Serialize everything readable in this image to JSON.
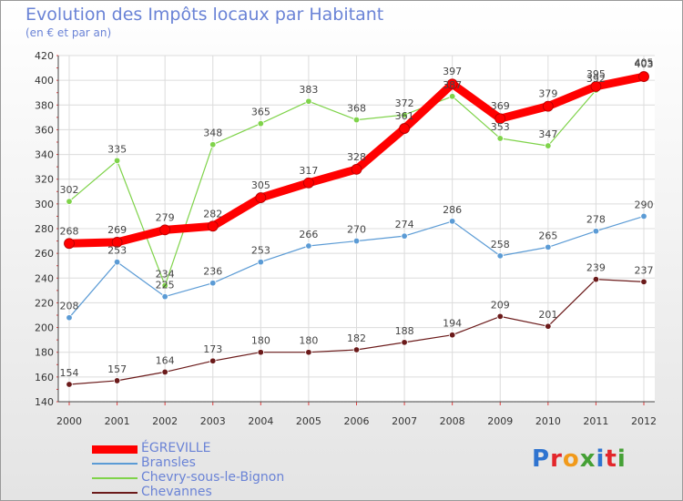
{
  "title": "Evolution des Impôts locaux par Habitant",
  "subtitle": "(en € et par an)",
  "logo": {
    "text": "Proxiti",
    "letter_colors": [
      "#2f74d0",
      "#e3262b",
      "#f19a1b",
      "#45a035",
      "#2f74d0",
      "#e3262b",
      "#45a035"
    ]
  },
  "chart_data": {
    "type": "line",
    "x": [
      2000,
      2001,
      2002,
      2003,
      2004,
      2005,
      2006,
      2007,
      2008,
      2009,
      2010,
      2011,
      2012
    ],
    "ylim": [
      140,
      420
    ],
    "yticks": [
      140,
      160,
      180,
      200,
      220,
      240,
      260,
      280,
      300,
      320,
      340,
      360,
      380,
      400,
      420
    ],
    "grid": true,
    "legend_position": "bottom-left",
    "series": [
      {
        "name": "ÉGREVILLE",
        "color": "#ff0000",
        "values": [
          268,
          269,
          279,
          282,
          305,
          317,
          328,
          361,
          397,
          369,
          379,
          395,
          403
        ]
      },
      {
        "name": "Bransles",
        "color": "#5b9bd5",
        "values": [
          208,
          253,
          225,
          236,
          253,
          266,
          270,
          274,
          286,
          258,
          265,
          278,
          290
        ]
      },
      {
        "name": "Chevry-sous-le-Bignon",
        "color": "#7fd34a",
        "values": [
          302,
          335,
          234,
          348,
          365,
          383,
          368,
          372,
          387,
          353,
          347,
          392,
          405
        ]
      },
      {
        "name": "Chevannes",
        "color": "#6b1a1a",
        "values": [
          154,
          157,
          164,
          173,
          180,
          180,
          182,
          188,
          194,
          209,
          201,
          239,
          237
        ]
      }
    ],
    "data_labels": {
      "ÉGREVILLE": [
        "268",
        "269",
        "279",
        "282",
        "305",
        "317",
        "328",
        "361",
        "397",
        "369",
        "379",
        "395",
        "403"
      ],
      "Bransles": [
        "208",
        "253",
        "225",
        "236",
        "253",
        "266",
        "270",
        "274",
        "286",
        "258",
        "265",
        "278",
        "290"
      ],
      "Chevry-sous-le-Bignon": [
        "302",
        "335",
        "234",
        "348",
        "365",
        "383",
        "368",
        "372",
        "387",
        "353",
        "347",
        "392",
        "405"
      ],
      "Chevannes": [
        "154",
        "157",
        "164",
        "173",
        "180",
        "180",
        "182",
        "188",
        "194",
        "209",
        "201",
        "239",
        "237"
      ]
    }
  }
}
